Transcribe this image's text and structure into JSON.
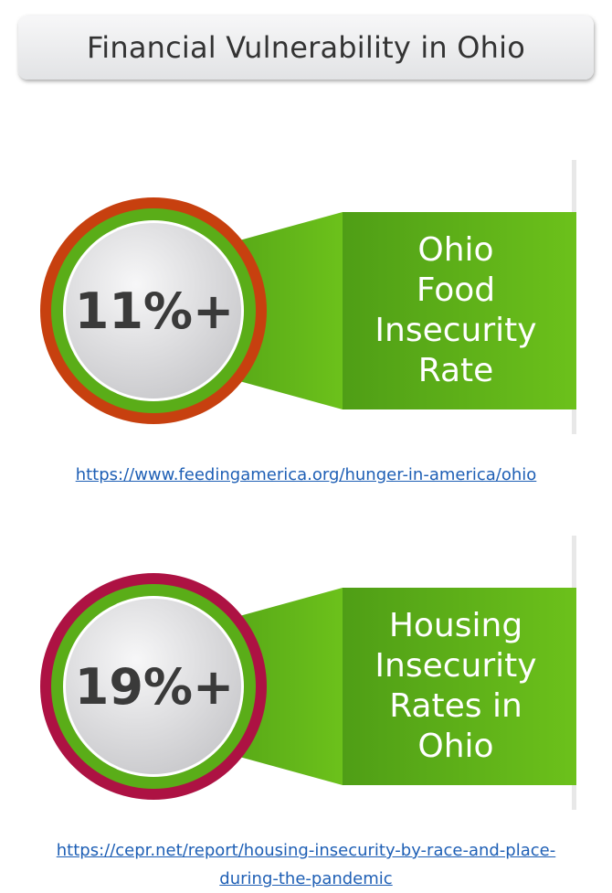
{
  "title": "Financial Vulnerability in Ohio",
  "stats": [
    {
      "value": "11%+",
      "label_lines": [
        "Ohio",
        "Food",
        "Insecurity",
        "Rate"
      ],
      "ring_color": "#c7400f",
      "link": "https://www.feedingamerica.org/hunger-in-america/ohio"
    },
    {
      "value": "19%+",
      "label_lines": [
        "Housing",
        "Insecurity",
        "Rates in",
        "Ohio"
      ],
      "ring_color": "#ad1243",
      "link_lines": [
        "https://cepr.net/report/housing-insecurity-by-race-and-place-",
        "during-the-pandemic"
      ]
    }
  ],
  "colors": {
    "green_dark": "#4f9e16",
    "green_light": "#6cc11b",
    "badge_light": "#f4f4f6",
    "badge_dark": "#c9c9cc"
  }
}
